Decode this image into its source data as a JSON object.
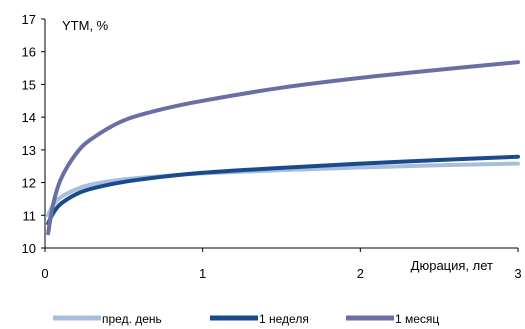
{
  "chart_data": {
    "type": "line",
    "title": "",
    "ylabel": "YTM, %",
    "xlabel": "Дюрация, лет",
    "xlim": [
      0,
      3
    ],
    "ylim": [
      10,
      17
    ],
    "xticks": [
      "0",
      "1",
      "2",
      "3"
    ],
    "yticks": [
      "10",
      "11",
      "12",
      "13",
      "14",
      "15",
      "16",
      "17"
    ],
    "grid": false,
    "legend_position": "bottom",
    "series": [
      {
        "name": "пред. день",
        "color": "#a9bedc",
        "x": [
          0.02,
          0.05,
          0.1,
          0.2,
          0.3,
          0.5,
          0.75,
          1.0,
          1.5,
          2.0,
          2.5,
          3.0
        ],
        "y": [
          11.0,
          11.3,
          11.55,
          11.8,
          11.95,
          12.1,
          12.2,
          12.28,
          12.38,
          12.46,
          12.53,
          12.58
        ]
      },
      {
        "name": "1 неделя",
        "color": "#1a4a8e",
        "x": [
          0.02,
          0.05,
          0.1,
          0.2,
          0.3,
          0.5,
          0.75,
          1.0,
          1.5,
          2.0,
          2.5,
          3.0
        ],
        "y": [
          10.75,
          11.05,
          11.35,
          11.65,
          11.82,
          12.02,
          12.18,
          12.3,
          12.45,
          12.58,
          12.69,
          12.79
        ]
      },
      {
        "name": "1 месяц",
        "color": "#6a6fa3",
        "x": [
          0.02,
          0.05,
          0.1,
          0.2,
          0.3,
          0.5,
          0.75,
          1.0,
          1.5,
          2.0,
          2.5,
          3.0
        ],
        "y": [
          10.45,
          11.3,
          12.1,
          12.9,
          13.35,
          13.9,
          14.25,
          14.5,
          14.9,
          15.2,
          15.45,
          15.68
        ]
      }
    ]
  }
}
